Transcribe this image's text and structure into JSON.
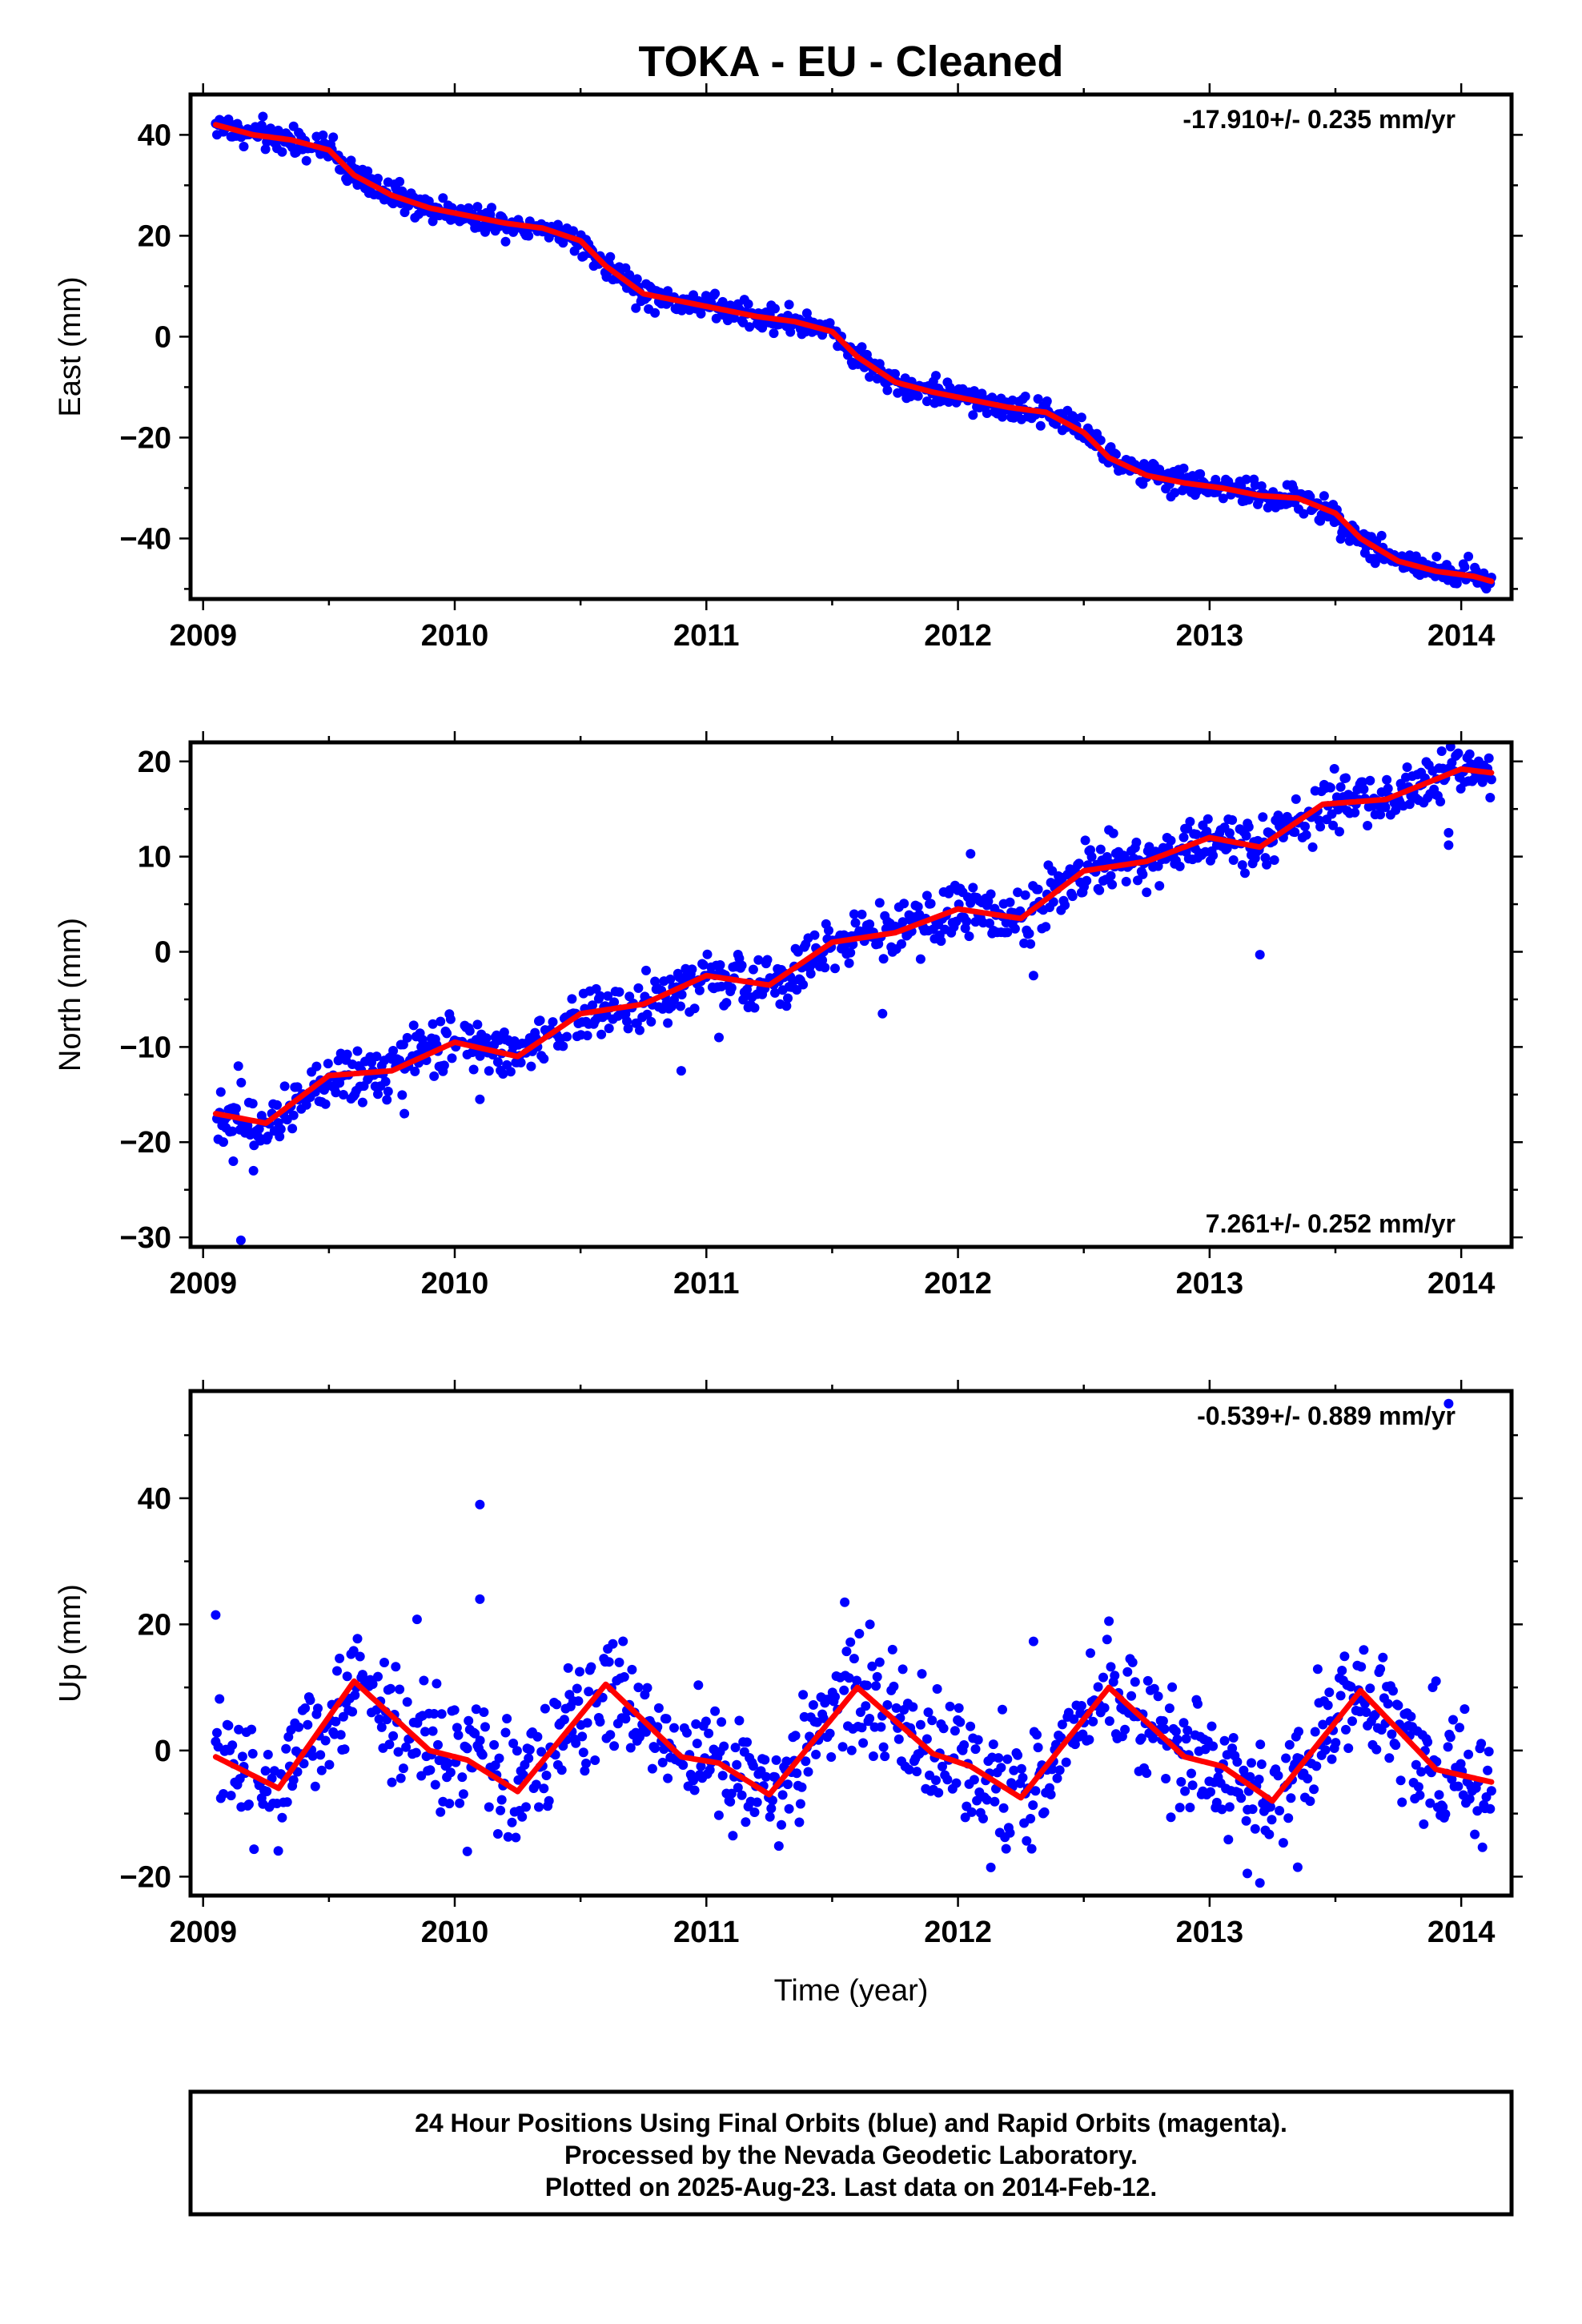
{
  "chart_data": {
    "type": "scatter",
    "title": "TOKA  - EU - Cleaned",
    "xlabel": "Time (year)",
    "xlim": [
      2008.95,
      2014.2
    ],
    "x_ticks": [
      2009,
      2010,
      2011,
      2012,
      2013,
      2014
    ],
    "data_range": [
      2009.05,
      2014.12
    ],
    "panels": [
      {
        "name": "east",
        "ylabel": "East (mm)",
        "ylim": [
          -52,
          48
        ],
        "y_ticks": [
          40,
          20,
          0,
          -20,
          -40
        ],
        "rate_label": "-17.910+/- 0.235 mm/yr",
        "rate_position": "top-right",
        "series": [
          {
            "name": "fit",
            "color": "#ff0000",
            "x": [
              2009.05,
              2009.2,
              2009.35,
              2009.5,
              2009.6,
              2009.75,
              2009.9,
              2010.05,
              2010.2,
              2010.35,
              2010.5,
              2010.6,
              2010.75,
              2010.9,
              2011.05,
              2011.2,
              2011.35,
              2011.5,
              2011.6,
              2011.75,
              2011.9,
              2012.05,
              2012.2,
              2012.35,
              2012.5,
              2012.6,
              2012.75,
              2012.9,
              2013.05,
              2013.2,
              2013.35,
              2013.5,
              2013.6,
              2013.75,
              2013.9,
              2014.05,
              2014.12
            ],
            "y": [
              42,
              40,
              39,
              37,
              32,
              28,
              25.5,
              24,
              22.5,
              21.5,
              19,
              14,
              8.5,
              7,
              5.5,
              4,
              3,
              1,
              -4,
              -9,
              -11,
              -12.5,
              -14,
              -15,
              -19,
              -24,
              -27.5,
              -29,
              -30,
              -31.5,
              -32,
              -35,
              -40,
              -44.5,
              -46.5,
              -47.5,
              -48.5
            ]
          },
          {
            "name": "daily positions",
            "color": "#0000ff",
            "noise": 1.3,
            "outliers": []
          }
        ]
      },
      {
        "name": "north",
        "ylabel": "North (mm)",
        "ylim": [
          -31,
          22
        ],
        "y_ticks": [
          20,
          10,
          0,
          -10,
          -20,
          -30
        ],
        "rate_label": "7.261+/- 0.252 mm/yr",
        "rate_position": "bottom-right",
        "series": [
          {
            "name": "fit",
            "color": "#ff0000",
            "x": [
              2009.05,
              2009.25,
              2009.5,
              2009.75,
              2010.0,
              2010.25,
              2010.5,
              2010.75,
              2011.0,
              2011.25,
              2011.5,
              2011.75,
              2012.0,
              2012.25,
              2012.5,
              2012.75,
              2013.0,
              2013.2,
              2013.45,
              2013.7,
              2014.0,
              2014.12
            ],
            "y": [
              -17,
              -18,
              -13,
              -12.5,
              -9.5,
              -11,
              -6.5,
              -5.5,
              -2.5,
              -3.5,
              1,
              2,
              4.5,
              3.5,
              8.5,
              9.5,
              12,
              11,
              15.5,
              16,
              19.2,
              18.8
            ]
          },
          {
            "name": "daily positions",
            "color": "#0000ff",
            "noise": 1.4,
            "outliers": [
              [
                2009.15,
                -30.3
              ],
              [
                2009.2,
                -23
              ],
              [
                2009.12,
                -22
              ],
              [
                2009.14,
                -12
              ],
              [
                2010.1,
                -15.5
              ],
              [
                2010.9,
                -12.5
              ],
              [
                2011.05,
                -9
              ],
              [
                2011.7,
                -6.5
              ],
              [
                2012.05,
                10.3
              ],
              [
                2012.3,
                -2.5
              ],
              [
                2013.2,
                -0.3
              ],
              [
                2013.95,
                11.2
              ],
              [
                2013.95,
                12.5
              ],
              [
                2012.6,
                12.8
              ],
              [
                2009.8,
                -17
              ]
            ]
          }
        ]
      },
      {
        "name": "up",
        "ylabel": "Up (mm)",
        "ylim": [
          -23,
          57
        ],
        "y_ticks": [
          40,
          20,
          0,
          -20
        ],
        "rate_label": "-0.539+/- 0.889 mm/yr",
        "rate_position": "top-right",
        "series": [
          {
            "name": "fit",
            "color": "#ff0000",
            "x": [
              2009.05,
              2009.3,
              2009.6,
              2009.9,
              2010.05,
              2010.25,
              2010.6,
              2010.9,
              2011.05,
              2011.25,
              2011.6,
              2011.9,
              2012.05,
              2012.25,
              2012.6,
              2012.9,
              2013.05,
              2013.25,
              2013.6,
              2013.9,
              2014.12
            ],
            "y": [
              -1,
              -6,
              11,
              0,
              -1.5,
              -6.5,
              10.5,
              -1,
              -2,
              -7,
              10,
              -0.5,
              -2.5,
              -7.5,
              10,
              -1,
              -2.5,
              -8,
              9.5,
              -3,
              -5
            ]
          },
          {
            "name": "daily positions",
            "color": "#0000ff",
            "noise": 4.5,
            "outliers": [
              [
                2013.95,
                55
              ],
              [
                2010.1,
                39
              ],
              [
                2010.1,
                24
              ],
              [
                2009.05,
                21.5
              ],
              [
                2009.85,
                20.8
              ],
              [
                2011.55,
                23.5
              ],
              [
                2011.65,
                20
              ],
              [
                2012.6,
                20.5
              ],
              [
                2013.15,
                -19.5
              ],
              [
                2013.2,
                -21
              ],
              [
                2013.35,
                -18.5
              ],
              [
                2010.05,
                -16
              ],
              [
                2012.3,
                17.3
              ],
              [
                2013.9,
                11
              ]
            ]
          }
        ]
      }
    ],
    "caption_lines": [
      "24 Hour Positions Using Final Orbits (blue) and Rapid Orbits (magenta).",
      "Processed by the Nevada Geodetic Laboratory.",
      "Plotted on 2025-Aug-23. Last data on 2014-Feb-12."
    ]
  }
}
